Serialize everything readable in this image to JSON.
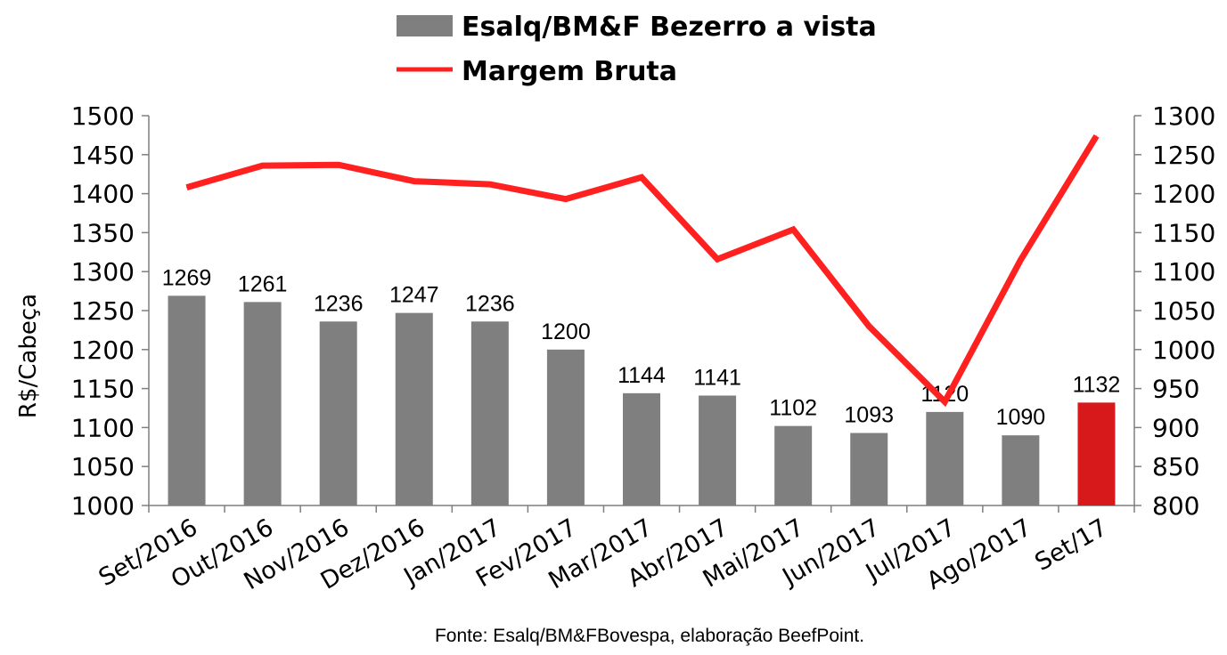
{
  "chart_data": {
    "type": "bar",
    "categories": [
      "Set/2016",
      "Out/2016",
      "Nov/2016",
      "Dez/2016",
      "Jan/2017",
      "Fev/2017",
      "Mar/2017",
      "Abr/2017",
      "Mai/2017",
      "Jun/2017",
      "Jul/2017",
      "Ago/2017",
      "Set/17"
    ],
    "series": [
      {
        "name": "Esalq/BM&F Bezerro a vista",
        "type": "bar",
        "axis": "left",
        "color": "#7f7f7f",
        "highlight_color": "#d7191c",
        "highlight_index": 12,
        "values": [
          1269,
          1261,
          1236,
          1247,
          1236,
          1200,
          1144,
          1141,
          1102,
          1093,
          1120,
          1090,
          1132
        ],
        "data_labels": [
          "1269",
          "1261",
          "1236",
          "1247",
          "1236",
          "1200",
          "1144",
          "1141",
          "1102",
          "1093",
          "1120",
          "1090",
          "1132"
        ]
      },
      {
        "name": "Margem Bruta",
        "type": "line",
        "axis": "right",
        "color": "#ff2020",
        "values": [
          1208,
          1236,
          1237,
          1216,
          1212,
          1193,
          1221,
          1116,
          1154,
          1030,
          933,
          1115,
          1274
        ]
      }
    ],
    "ylabel": "R$/Cabeça",
    "ylim": [
      1000,
      1500
    ],
    "yticks": [
      "1000",
      "1050",
      "1100",
      "1150",
      "1200",
      "1250",
      "1300",
      "1350",
      "1400",
      "1450",
      "1500"
    ],
    "y2lim": [
      800,
      1300
    ],
    "y2ticks": [
      "800",
      "850",
      "900",
      "950",
      "1000",
      "1050",
      "1100",
      "1150",
      "1200",
      "1250",
      "1300"
    ],
    "legend_position": "top",
    "grid": false,
    "source": "Fonte: Esalq/BM&FBovespa, elaboração BeefPoint."
  }
}
